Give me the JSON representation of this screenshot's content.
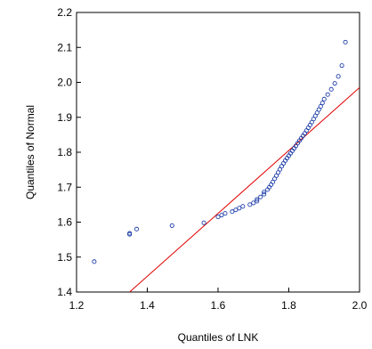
{
  "chart_data": {
    "type": "scatter",
    "title": "",
    "xlabel": "Quantiles of LNK",
    "ylabel": "Quantiles of Normal",
    "xlim": [
      1.2,
      2.0
    ],
    "ylim": [
      1.4,
      2.2
    ],
    "x_ticks": [
      "1.2",
      "1.4",
      "1.6",
      "1.8",
      "2.0"
    ],
    "y_ticks": [
      "1.4",
      "1.5",
      "1.6",
      "1.7",
      "1.8",
      "1.9",
      "2.0",
      "2.1",
      "2.2"
    ],
    "grid": false,
    "point_color": "#1f3fa8",
    "line_color": "#e00000",
    "reference_line": {
      "x": [
        1.35,
        2.0
      ],
      "y": [
        1.4,
        1.985
      ]
    },
    "series": [
      {
        "x": [
          1.25,
          1.35,
          1.35,
          1.37,
          1.47,
          1.56,
          1.6,
          1.61,
          1.62,
          1.64,
          1.65,
          1.66,
          1.67,
          1.69,
          1.7,
          1.71,
          1.71,
          1.72,
          1.73,
          1.73,
          1.74,
          1.745,
          1.75,
          1.755,
          1.76,
          1.765,
          1.77,
          1.775,
          1.78,
          1.785,
          1.79,
          1.795,
          1.8,
          1.805,
          1.81,
          1.815,
          1.82,
          1.825,
          1.83,
          1.835,
          1.84,
          1.845,
          1.85,
          1.855,
          1.86,
          1.865,
          1.87,
          1.875,
          1.88,
          1.885,
          1.89,
          1.895,
          1.9,
          1.91,
          1.92,
          1.93,
          1.94,
          1.95,
          1.96
        ],
        "y": [
          1.487,
          1.565,
          1.568,
          1.58,
          1.59,
          1.598,
          1.615,
          1.62,
          1.625,
          1.63,
          1.635,
          1.64,
          1.645,
          1.65,
          1.655,
          1.66,
          1.665,
          1.672,
          1.68,
          1.686,
          1.693,
          1.7,
          1.707,
          1.715,
          1.724,
          1.733,
          1.742,
          1.751,
          1.76,
          1.768,
          1.776,
          1.783,
          1.79,
          1.797,
          1.804,
          1.811,
          1.818,
          1.826,
          1.833,
          1.84,
          1.847,
          1.854,
          1.862,
          1.87,
          1.878,
          1.886,
          1.895,
          1.904,
          1.913,
          1.922,
          1.931,
          1.941,
          1.952,
          1.965,
          1.98,
          1.997,
          2.017,
          2.048,
          2.115
        ]
      }
    ]
  }
}
